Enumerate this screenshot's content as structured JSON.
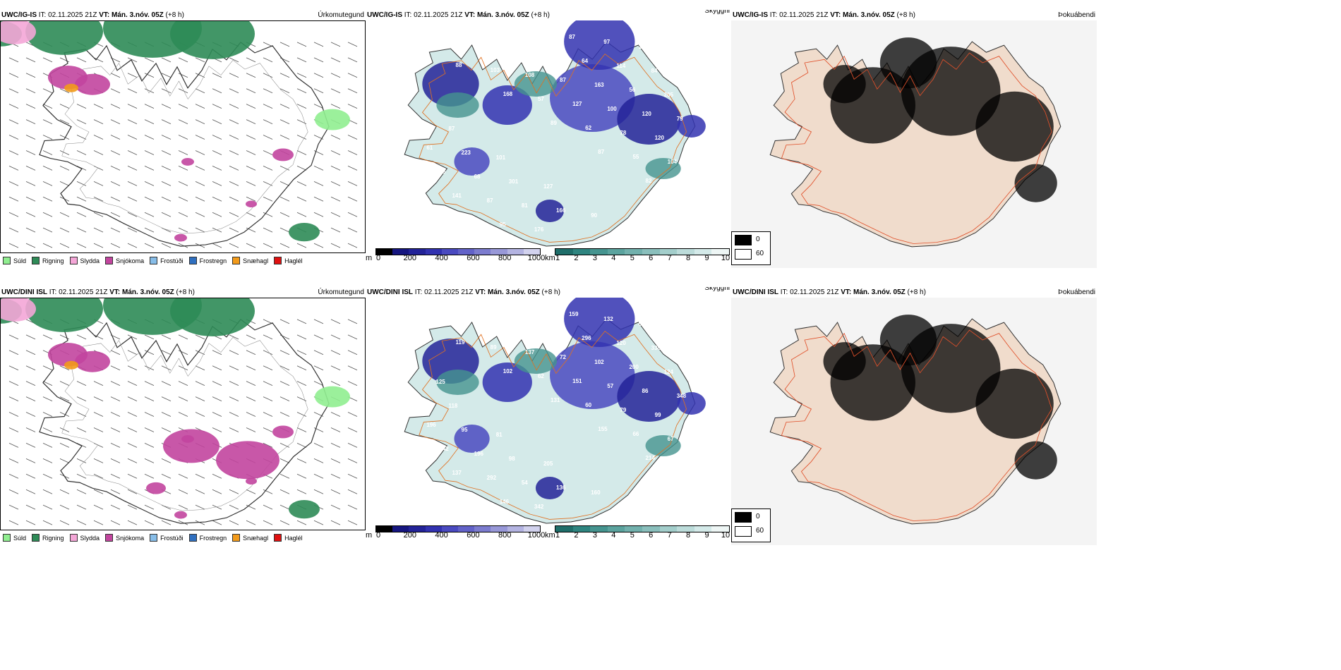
{
  "rows": [
    {
      "model": "UWC/IG-IS",
      "it_label": "IT:",
      "it_value": "02.11.2025 21Z",
      "vt_label": "VT:",
      "vt_value": "Mán. 3.nóv. 05Z",
      "lead": "(+8 h)",
      "titles": [
        "Úrkomutegund",
        "Skyggni",
        "Þokuábendi"
      ],
      "labels": [
        "161",
        "88",
        "168",
        "89",
        "87",
        "82",
        "111",
        "79",
        "103",
        "57",
        "62",
        "55",
        "73",
        "780",
        "183",
        "108",
        "127",
        "78",
        "104",
        "56",
        "70",
        "86",
        "87",
        "100",
        "120",
        "135",
        "141",
        "95",
        "149",
        "163",
        "120",
        "119",
        "78",
        "87",
        "176",
        "64",
        "56",
        "79",
        "61",
        "68",
        "81",
        "87",
        "114",
        "205",
        "233",
        "223",
        "301",
        "166",
        "97",
        "84",
        "98",
        "87",
        "101",
        "127",
        "90",
        "120"
      ]
    },
    {
      "model": "UWC/DINI ISL",
      "it_label": "IT:",
      "it_value": "02.11.2025 21Z",
      "vt_label": "VT:",
      "vt_value": "Mán. 3.nóv. 05Z",
      "lead": "(+8 h)",
      "titles": [
        "Úrkomutegund",
        "Skyggni",
        "Þokuábendi"
      ],
      "labels": [
        "89",
        "119",
        "102",
        "131",
        "155",
        "214",
        "396",
        "111",
        "89",
        "62",
        "60",
        "66",
        "52",
        "53",
        "160",
        "137",
        "151",
        "79",
        "67",
        "76",
        "90",
        "65",
        "72",
        "57",
        "99",
        "198",
        "137",
        "146",
        "104",
        "102",
        "86",
        "169",
        "242",
        "292",
        "342",
        "296",
        "200",
        "348",
        "196",
        "196",
        "54",
        "159",
        "120",
        "124",
        "159",
        "95",
        "98",
        "136",
        "132",
        "338",
        "168",
        "118",
        "81",
        "205",
        "160",
        "65",
        "57",
        "125"
      ]
    }
  ],
  "precip_legend": [
    {
      "label": "Súld",
      "color": "#90ee90"
    },
    {
      "label": "Rigning",
      "color": "#2e8b57"
    },
    {
      "label": "Slydda",
      "color": "#f4a6d7"
    },
    {
      "label": "Snjókoma",
      "color": "#c2459e"
    },
    {
      "label": "Frostúði",
      "color": "#87bde8"
    },
    {
      "label": "Frostregn",
      "color": "#2f6fbf"
    },
    {
      "label": "Snæhagl",
      "color": "#f29a1a"
    },
    {
      "label": "Haglél",
      "color": "#e01010"
    }
  ],
  "visibility_scale": {
    "unit_m": "m",
    "ticks_m": [
      "0",
      "200",
      "400",
      "600",
      "800",
      "1000"
    ],
    "colors_m": [
      "#000000",
      "#161680",
      "#232398",
      "#3232b0",
      "#4a4ac0",
      "#6262c8",
      "#7c7ccf",
      "#9898d8",
      "#b4b4e2",
      "#d2d2ee"
    ],
    "unit_km": "km",
    "ticks_km": [
      "1",
      "2",
      "3",
      "4",
      "5",
      "6",
      "7",
      "8",
      "9",
      "10"
    ],
    "colors_km": [
      "#1f6e6a",
      "#2f8580",
      "#45948f",
      "#5ba39e",
      "#72b1ad",
      "#8abfbc",
      "#a3cecb",
      "#bcdcda",
      "#d4eae9",
      "#eef6f5"
    ]
  },
  "fog_key": [
    {
      "label": "0",
      "color": "#000000"
    },
    {
      "label": "60",
      "color": "#ffffff"
    }
  ]
}
